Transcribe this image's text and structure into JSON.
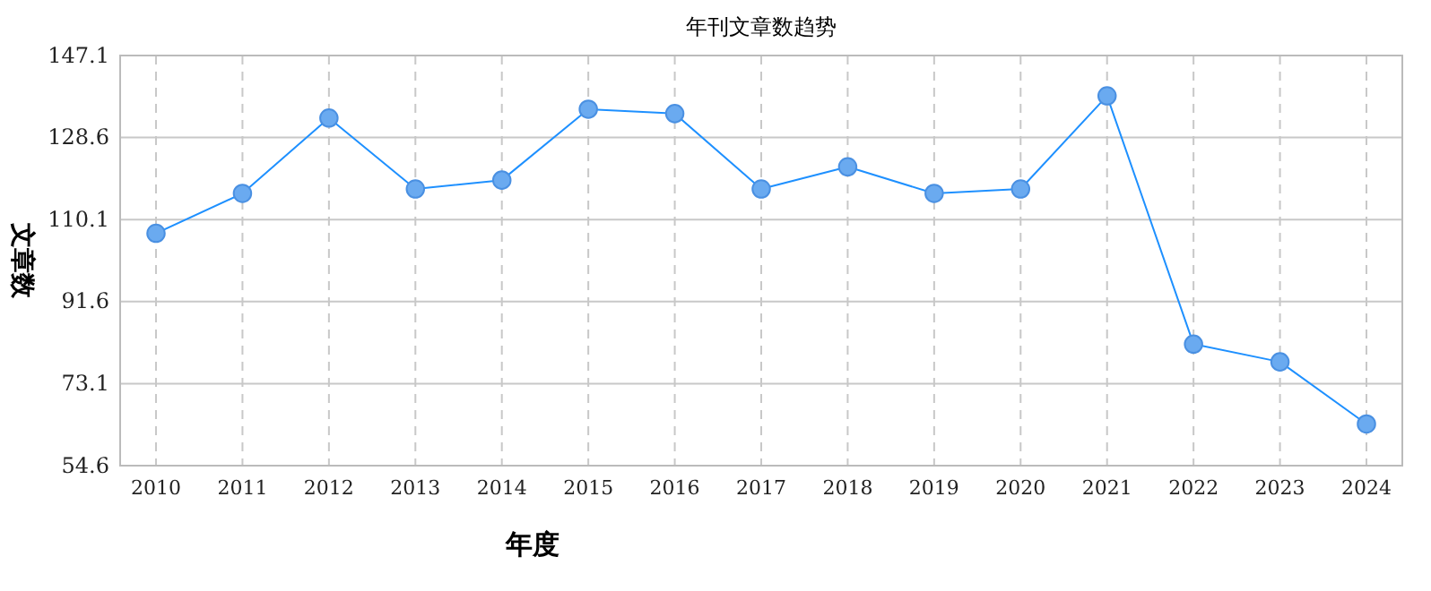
{
  "chart_data": {
    "type": "line",
    "title": "年刊文章数趋势",
    "xlabel": "年度",
    "ylabel": "文章数",
    "categories": [
      "2010",
      "2011",
      "2012",
      "2013",
      "2014",
      "2015",
      "2016",
      "2017",
      "2018",
      "2019",
      "2020",
      "2021",
      "2022",
      "2023",
      "2024"
    ],
    "series": [
      {
        "color": "#1e90ff",
        "values": [
          107,
          116,
          133,
          117,
          119,
          135,
          134,
          117,
          122,
          116,
          117,
          138,
          82,
          78,
          64
        ]
      }
    ],
    "ylim": [
      54.6,
      147.1
    ],
    "yticks": [
      54.6,
      73.1,
      91.6,
      110.1,
      128.6,
      147.1
    ],
    "grid": true,
    "marker": "circle",
    "line_style": "solid"
  }
}
